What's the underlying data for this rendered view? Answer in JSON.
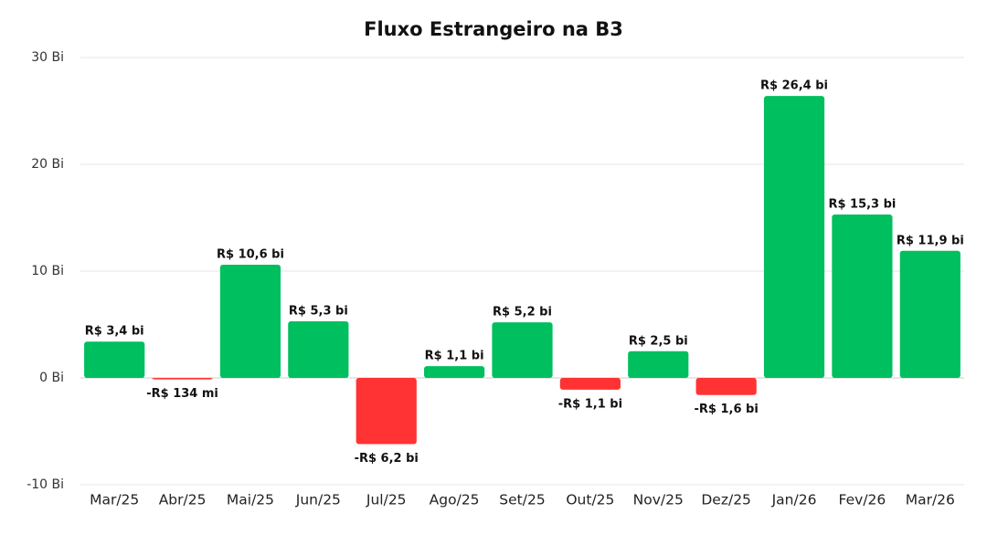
{
  "chart_data": {
    "type": "bar",
    "title": "Fluxo Estrangeiro na B3",
    "xlabel": "",
    "ylabel": "",
    "ylim": [
      -10,
      30
    ],
    "yticks": [
      30,
      20,
      10,
      0,
      -10
    ],
    "ytick_labels": [
      "30 Bi",
      "20 Bi",
      "10 Bi",
      "0 Bi",
      "-10 Bi"
    ],
    "grid": true,
    "categories": [
      "Mar/25",
      "Abr/25",
      "Mai/25",
      "Jun/25",
      "Jul/25",
      "Ago/25",
      "Set/25",
      "Out/25",
      "Nov/25",
      "Dez/25",
      "Jan/26",
      "Fev/26",
      "Mar/26"
    ],
    "values": [
      3.4,
      -0.134,
      10.6,
      5.3,
      -6.2,
      1.1,
      5.2,
      -1.1,
      2.5,
      -1.6,
      26.4,
      15.3,
      11.9
    ],
    "data_labels": [
      "R$ 3,4 bi",
      "-R$ 134 mi",
      "R$ 10,6 bi",
      "R$ 5,3 bi",
      "-R$ 6,2 bi",
      "R$ 1,1 bi",
      "R$ 5,2 bi",
      "-R$ 1,1 bi",
      "R$ 2,5 bi",
      "-R$ 1,6 bi",
      "R$ 26,4 bi",
      "R$ 15,3 bi",
      "R$ 11,9 bi"
    ],
    "colors": {
      "positive": "#00bf5f",
      "negative": "#ff3333",
      "grid": "#e6e6e6",
      "baseline": "#cccccc"
    }
  }
}
